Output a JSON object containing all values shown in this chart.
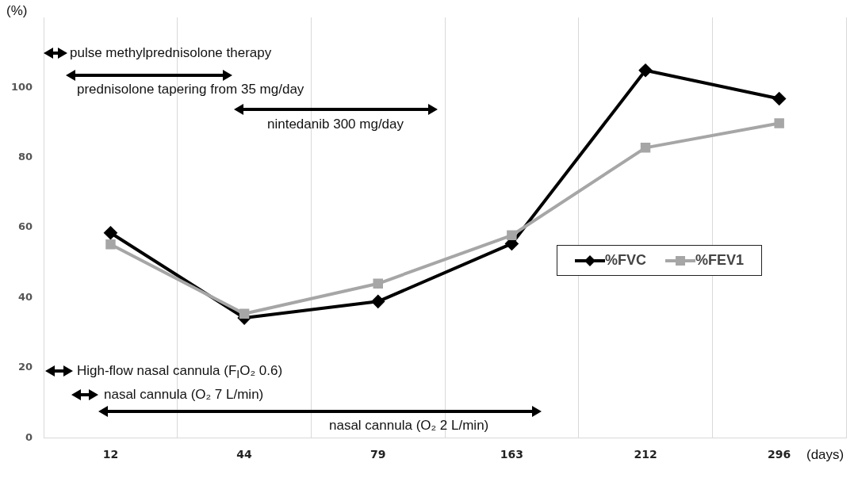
{
  "chart_data": {
    "type": "line",
    "ylabel": "(%)",
    "xlabel": "(days)",
    "categories": [
      "12",
      "44",
      "79",
      "163",
      "212",
      "296"
    ],
    "ylim": [
      0,
      120
    ],
    "yticks": [
      0,
      20,
      40,
      60,
      80,
      100
    ],
    "grid": "x",
    "legend": "right",
    "line_style": "solid",
    "series": [
      {
        "name": "%FVC",
        "color": "#000000",
        "marker": "diamond",
        "values": [
          58.5,
          34.2,
          38.9,
          55.4,
          104.9,
          96.8
        ]
      },
      {
        "name": "%FEV1",
        "color": "#a6a6a6",
        "marker": "square",
        "values": [
          55.2,
          35.4,
          44,
          57.8,
          82.8,
          89.8
        ]
      }
    ],
    "annotations": [
      "pulse methylprednisolone therapy",
      "prednisolone tapering from 35 mg/day",
      "nintedanib 300 mg/day",
      "High-flow nasal cannula (F$_{I}$O₂ 0.6)",
      "nasal cannula (O₂ 7 L/min)",
      "nasal cannula (O₂ 2 L/min)"
    ]
  }
}
